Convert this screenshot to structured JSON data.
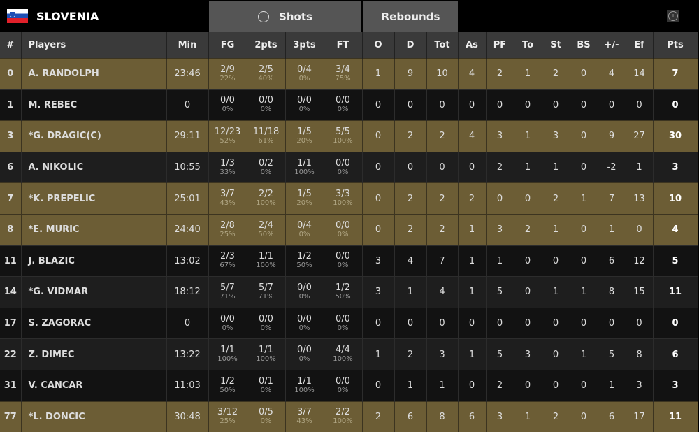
{
  "team": {
    "name": "SLOVENIA",
    "flag": "slovenia-flag"
  },
  "tabs": [
    {
      "label": "Shots",
      "icon": "basketball-icon"
    },
    {
      "label": "Rebounds"
    }
  ],
  "info_icon": "info-icon",
  "colors": {
    "highlight_row": "#6c5d35",
    "header": "#3a3a3a",
    "tab": "#555555"
  },
  "columns": [
    "#",
    "Players",
    "Min",
    "FG",
    "2pts",
    "3pts",
    "FT",
    "O",
    "D",
    "Tot",
    "As",
    "PF",
    "To",
    "St",
    "BS",
    "+/-",
    "Ef",
    "Pts"
  ],
  "players": [
    {
      "num": "0",
      "name": "A. RANDOLPH",
      "min": "23:46",
      "fg": [
        "2/9",
        "22%"
      ],
      "p2": [
        "2/5",
        "40%"
      ],
      "p3": [
        "0/4",
        "0%"
      ],
      "ft": [
        "3/4",
        "75%"
      ],
      "o": "1",
      "d": "9",
      "tot": "10",
      "as": "4",
      "pf": "2",
      "to": "1",
      "st": "2",
      "bs": "0",
      "pm": "4",
      "ef": "14",
      "pts": "7",
      "highlight": true
    },
    {
      "num": "1",
      "name": "M. REBEC",
      "min": "0",
      "fg": [
        "0/0",
        "0%"
      ],
      "p2": [
        "0/0",
        "0%"
      ],
      "p3": [
        "0/0",
        "0%"
      ],
      "ft": [
        "0/0",
        "0%"
      ],
      "o": "0",
      "d": "0",
      "tot": "0",
      "as": "0",
      "pf": "0",
      "to": "0",
      "st": "0",
      "bs": "0",
      "pm": "0",
      "ef": "0",
      "pts": "0",
      "highlight": false
    },
    {
      "num": "3",
      "name": "*G. DRAGIC(C)",
      "min": "29:11",
      "fg": [
        "12/23",
        "52%"
      ],
      "p2": [
        "11/18",
        "61%"
      ],
      "p3": [
        "1/5",
        "20%"
      ],
      "ft": [
        "5/5",
        "100%"
      ],
      "o": "0",
      "d": "2",
      "tot": "2",
      "as": "4",
      "pf": "3",
      "to": "1",
      "st": "3",
      "bs": "0",
      "pm": "9",
      "ef": "27",
      "pts": "30",
      "highlight": true
    },
    {
      "num": "6",
      "name": "A. NIKOLIC",
      "min": "10:55",
      "fg": [
        "1/3",
        "33%"
      ],
      "p2": [
        "0/2",
        "0%"
      ],
      "p3": [
        "1/1",
        "100%"
      ],
      "ft": [
        "0/0",
        "0%"
      ],
      "o": "0",
      "d": "0",
      "tot": "0",
      "as": "0",
      "pf": "2",
      "to": "1",
      "st": "1",
      "bs": "0",
      "pm": "-2",
      "ef": "1",
      "pts": "3",
      "highlight": false
    },
    {
      "num": "7",
      "name": "*K. PREPELIC",
      "min": "25:01",
      "fg": [
        "3/7",
        "43%"
      ],
      "p2": [
        "2/2",
        "100%"
      ],
      "p3": [
        "1/5",
        "20%"
      ],
      "ft": [
        "3/3",
        "100%"
      ],
      "o": "0",
      "d": "2",
      "tot": "2",
      "as": "2",
      "pf": "0",
      "to": "0",
      "st": "2",
      "bs": "1",
      "pm": "7",
      "ef": "13",
      "pts": "10",
      "highlight": true
    },
    {
      "num": "8",
      "name": "*E. MURIC",
      "min": "24:40",
      "fg": [
        "2/8",
        "25%"
      ],
      "p2": [
        "2/4",
        "50%"
      ],
      "p3": [
        "0/4",
        "0%"
      ],
      "ft": [
        "0/0",
        "0%"
      ],
      "o": "0",
      "d": "2",
      "tot": "2",
      "as": "1",
      "pf": "3",
      "to": "2",
      "st": "1",
      "bs": "0",
      "pm": "1",
      "ef": "0",
      "pts": "4",
      "highlight": true
    },
    {
      "num": "11",
      "name": "J. BLAZIC",
      "min": "13:02",
      "fg": [
        "2/3",
        "67%"
      ],
      "p2": [
        "1/1",
        "100%"
      ],
      "p3": [
        "1/2",
        "50%"
      ],
      "ft": [
        "0/0",
        "0%"
      ],
      "o": "3",
      "d": "4",
      "tot": "7",
      "as": "1",
      "pf": "1",
      "to": "0",
      "st": "0",
      "bs": "0",
      "pm": "6",
      "ef": "12",
      "pts": "5",
      "highlight": false
    },
    {
      "num": "14",
      "name": "*G. VIDMAR",
      "min": "18:12",
      "fg": [
        "5/7",
        "71%"
      ],
      "p2": [
        "5/7",
        "71%"
      ],
      "p3": [
        "0/0",
        "0%"
      ],
      "ft": [
        "1/2",
        "50%"
      ],
      "o": "3",
      "d": "1",
      "tot": "4",
      "as": "1",
      "pf": "5",
      "to": "0",
      "st": "1",
      "bs": "1",
      "pm": "8",
      "ef": "15",
      "pts": "11",
      "highlight": false
    },
    {
      "num": "17",
      "name": "S. ZAGORAC",
      "min": "0",
      "fg": [
        "0/0",
        "0%"
      ],
      "p2": [
        "0/0",
        "0%"
      ],
      "p3": [
        "0/0",
        "0%"
      ],
      "ft": [
        "0/0",
        "0%"
      ],
      "o": "0",
      "d": "0",
      "tot": "0",
      "as": "0",
      "pf": "0",
      "to": "0",
      "st": "0",
      "bs": "0",
      "pm": "0",
      "ef": "0",
      "pts": "0",
      "highlight": false
    },
    {
      "num": "22",
      "name": "Z. DIMEC",
      "min": "13:22",
      "fg": [
        "1/1",
        "100%"
      ],
      "p2": [
        "1/1",
        "100%"
      ],
      "p3": [
        "0/0",
        "0%"
      ],
      "ft": [
        "4/4",
        "100%"
      ],
      "o": "1",
      "d": "2",
      "tot": "3",
      "as": "1",
      "pf": "5",
      "to": "3",
      "st": "0",
      "bs": "1",
      "pm": "5",
      "ef": "8",
      "pts": "6",
      "highlight": false
    },
    {
      "num": "31",
      "name": "V. CANCAR",
      "min": "11:03",
      "fg": [
        "1/2",
        "50%"
      ],
      "p2": [
        "0/1",
        "0%"
      ],
      "p3": [
        "1/1",
        "100%"
      ],
      "ft": [
        "0/0",
        "0%"
      ],
      "o": "0",
      "d": "1",
      "tot": "1",
      "as": "0",
      "pf": "2",
      "to": "0",
      "st": "0",
      "bs": "0",
      "pm": "1",
      "ef": "3",
      "pts": "3",
      "highlight": false
    },
    {
      "num": "77",
      "name": "*L. DONCIC",
      "min": "30:48",
      "fg": [
        "3/12",
        "25%"
      ],
      "p2": [
        "0/5",
        "0%"
      ],
      "p3": [
        "3/7",
        "43%"
      ],
      "ft": [
        "2/2",
        "100%"
      ],
      "o": "2",
      "d": "6",
      "tot": "8",
      "as": "6",
      "pf": "3",
      "to": "1",
      "st": "2",
      "bs": "0",
      "pm": "6",
      "ef": "17",
      "pts": "11",
      "highlight": true
    }
  ]
}
